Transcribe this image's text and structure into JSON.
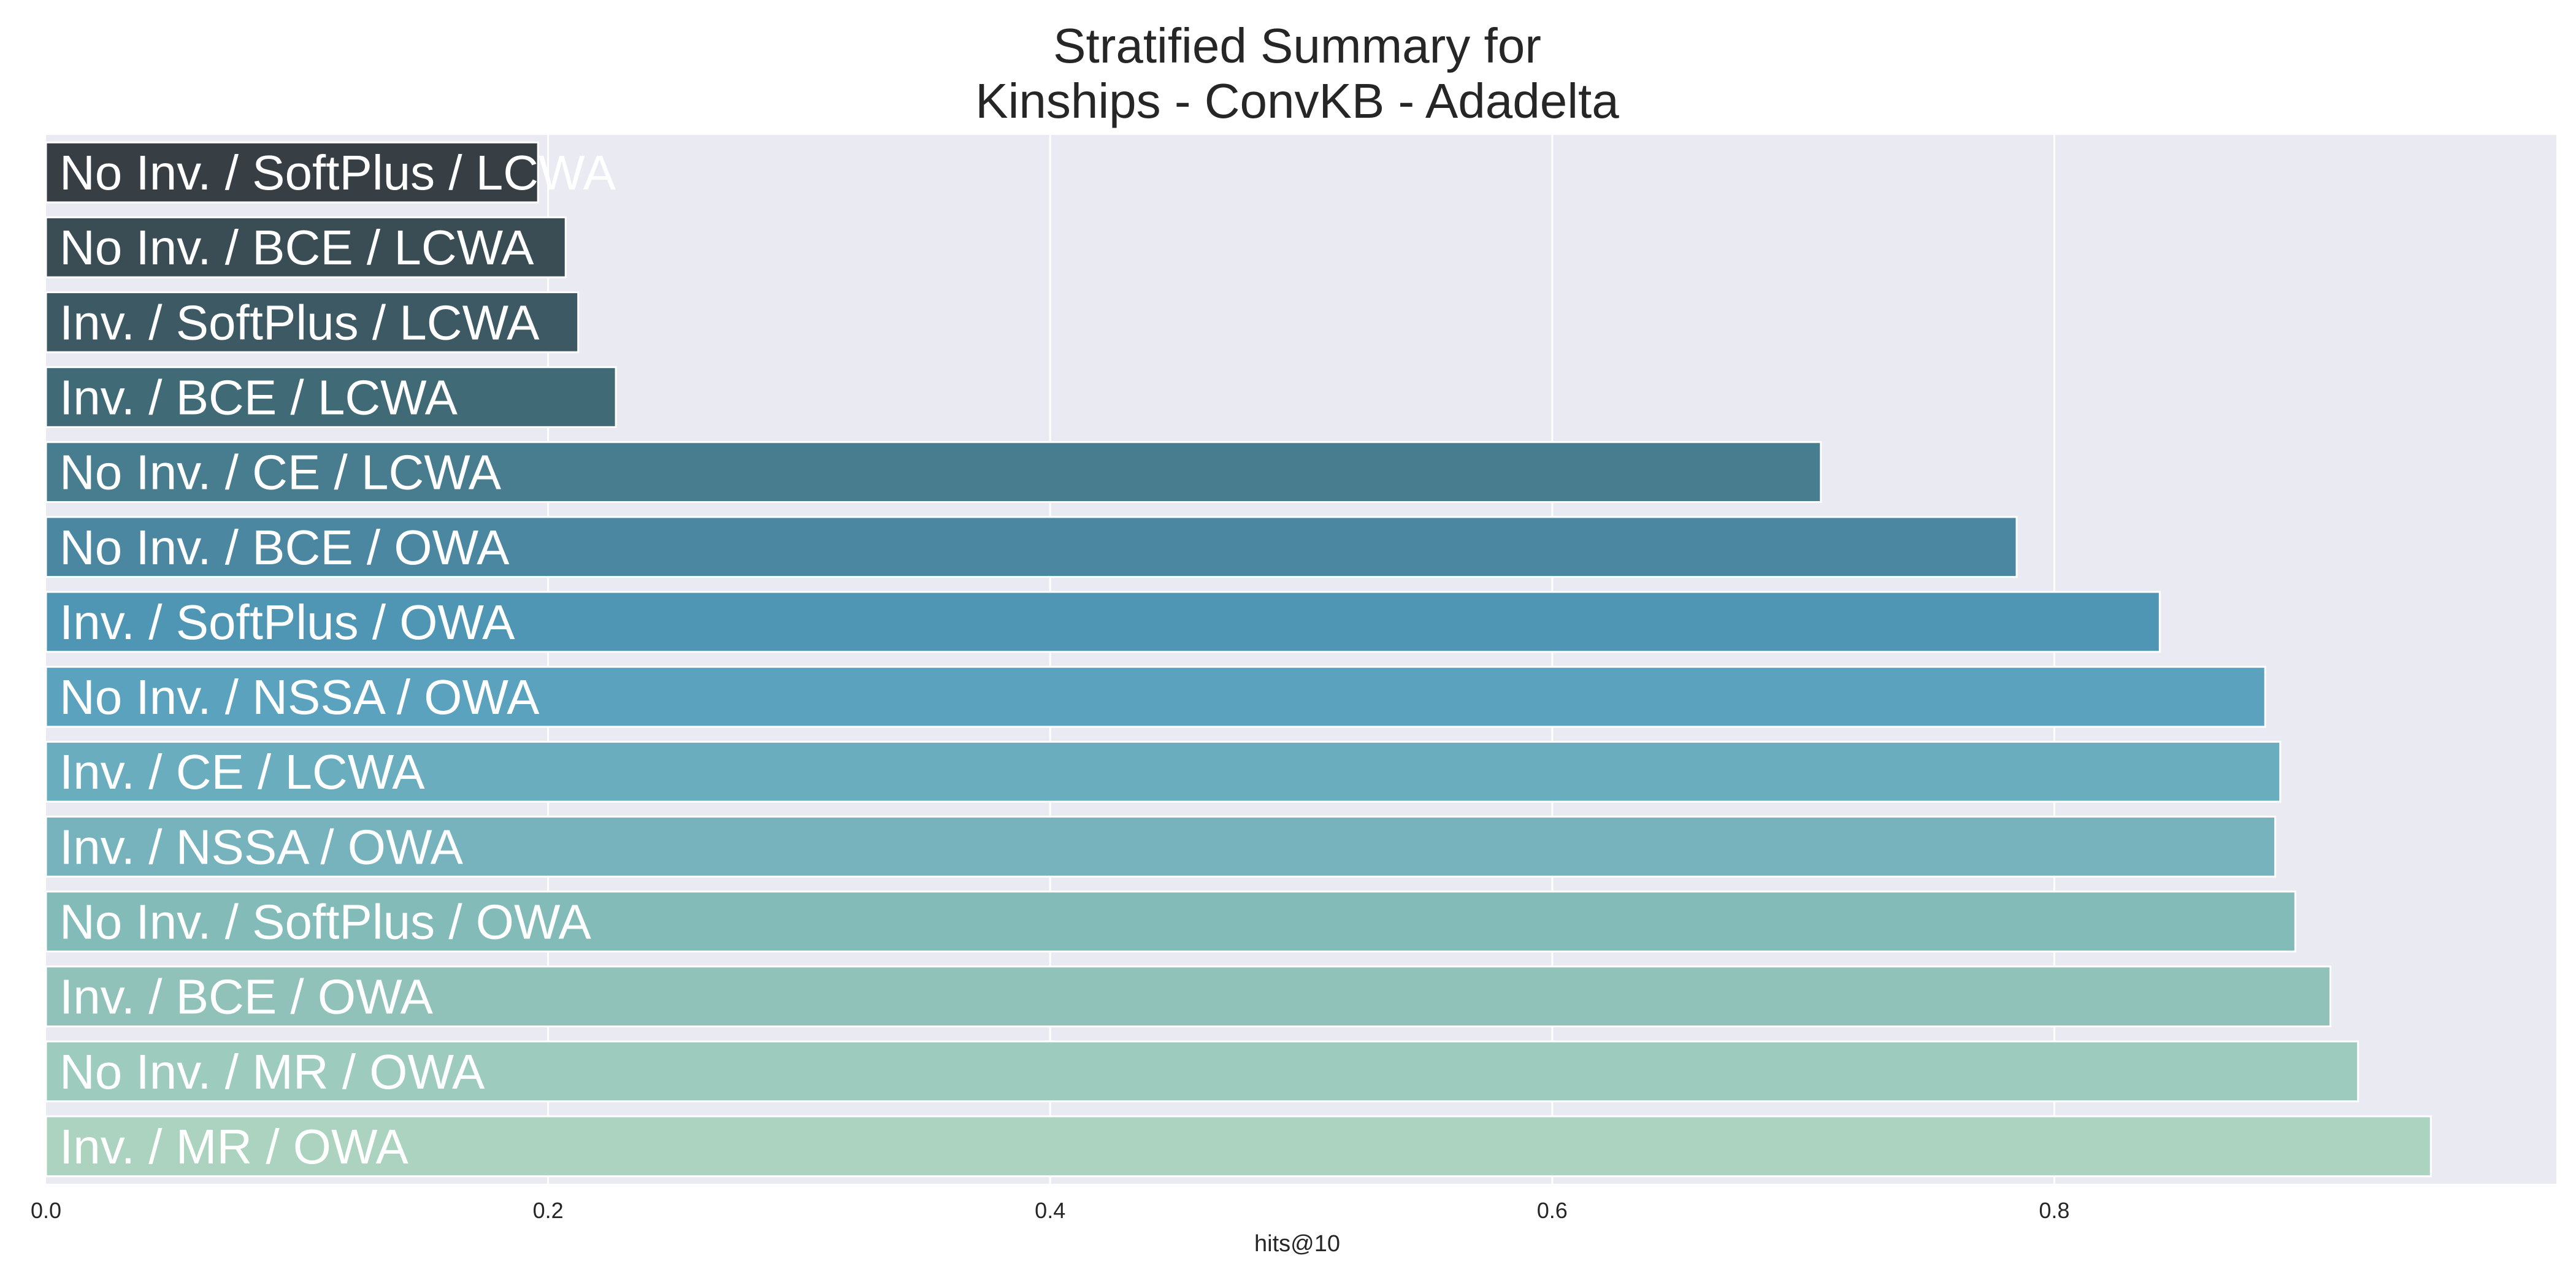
{
  "chart_data": {
    "type": "bar",
    "orientation": "horizontal",
    "title": "Stratified Summary for\nKinships - ConvKB - Adadelta",
    "title_lines": [
      "Stratified Summary for",
      "Kinships - ConvKB - Adadelta"
    ],
    "xlabel": "hits@10",
    "ylabel": "",
    "xlim": [
      0.0,
      1.0
    ],
    "xticks": [
      0.0,
      0.2,
      0.4,
      0.6,
      0.8
    ],
    "xtick_labels": [
      "0.0",
      "0.2",
      "0.4",
      "0.6",
      "0.8"
    ],
    "grid": true,
    "background": "#EAEAF2",
    "label_color": "#ffffff",
    "categories": [
      "No Inv. / SoftPlus / LCWA",
      "No Inv. / BCE / LCWA",
      "Inv. / SoftPlus / LCWA",
      "Inv. / BCE / LCWA",
      "No Inv. / CE / LCWA",
      "No Inv. / BCE / OWA",
      "Inv. / SoftPlus / OWA",
      "No Inv. / NSSA / OWA",
      "Inv. / CE / LCWA",
      "Inv. / NSSA / OWA",
      "No Inv. / SoftPlus / OWA",
      "Inv. / BCE / OWA",
      "No Inv. / MR / OWA",
      "Inv. / MR / OWA"
    ],
    "values": [
      0.196,
      0.207,
      0.212,
      0.227,
      0.707,
      0.785,
      0.842,
      0.884,
      0.89,
      0.888,
      0.896,
      0.91,
      0.921,
      0.95
    ],
    "colors": [
      "#373F44",
      "#3A4C54",
      "#3D5964",
      "#416A77",
      "#477D8E",
      "#4C87A2",
      "#4F96B4",
      "#5AA2BE",
      "#69ADBE",
      "#77B3BD",
      "#83BBB9",
      "#90C2B9",
      "#9DCBBD",
      "#ABD3BF"
    ]
  }
}
